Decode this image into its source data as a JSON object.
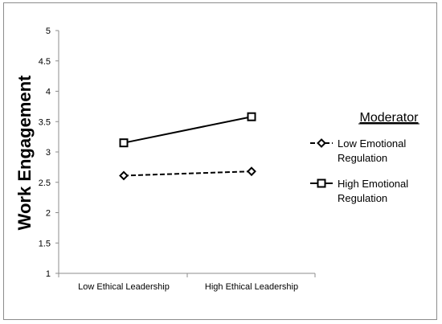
{
  "chart_data": {
    "type": "line",
    "title": "",
    "xlabel": "",
    "ylabel": "Work Engagement",
    "categories": [
      "Low Ethical Leadership",
      "High Ethical Leadership"
    ],
    "ylim": [
      1,
      5
    ],
    "yticks": [
      "1",
      "1.5",
      "2",
      "2.5",
      "3",
      "3.5",
      "4",
      "4.5",
      "5"
    ],
    "grid": false,
    "legend": {
      "title": "Moderator",
      "placement": "right"
    },
    "series": [
      {
        "name": "Low Emotional Regulation",
        "name_lines": [
          "Low Emotional",
          "Regulation"
        ],
        "values": [
          2.61,
          2.68
        ],
        "line_style": "dashed",
        "marker": "diamond",
        "color": "#000000"
      },
      {
        "name": "High Emotional Regulation",
        "name_lines": [
          "High Emotional",
          "Regulation"
        ],
        "values": [
          3.15,
          3.58
        ],
        "line_style": "solid",
        "marker": "square",
        "color": "#000000"
      }
    ]
  }
}
